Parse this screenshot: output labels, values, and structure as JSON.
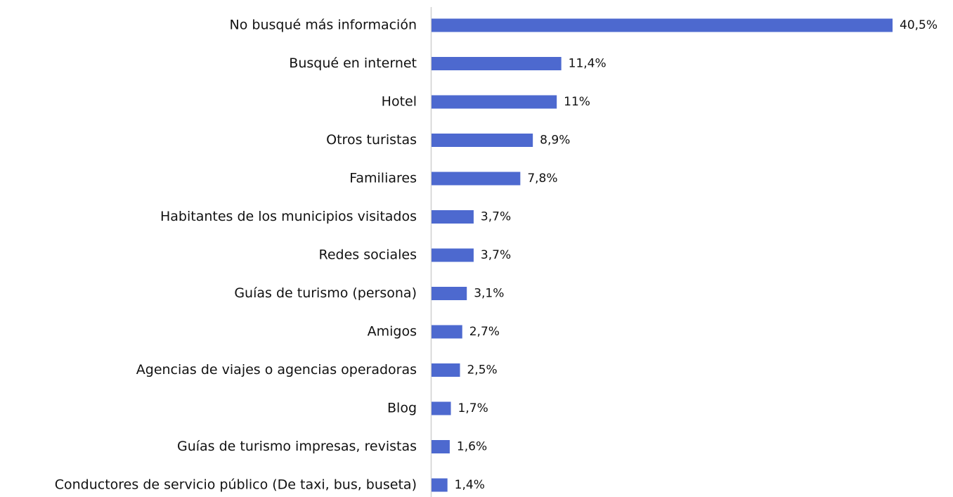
{
  "chart_data": {
    "type": "barh",
    "categories": [
      "No busqué más información",
      "Busqué en internet",
      "Hotel",
      "Otros turistas",
      "Familiares",
      "Habitantes de los municipios visitados",
      "Redes sociales",
      "Guías de turismo (persona)",
      "Amigos",
      "Agencias de viajes o agencias operadoras",
      "Blog",
      "Guías de turismo impresas, revistas",
      "Conductores de servicio público (De taxi, bus, buseta)"
    ],
    "values": [
      40.5,
      11.4,
      11,
      8.9,
      7.8,
      3.7,
      3.7,
      3.1,
      2.7,
      2.5,
      1.7,
      1.6,
      1.4
    ],
    "value_labels": [
      "40,5%",
      "11,4%",
      "11%",
      "8,9%",
      "7,8%",
      "3,7%",
      "3,7%",
      "3,1%",
      "2,7%",
      "2,5%",
      "1,7%",
      "1,6%",
      "1,4%"
    ],
    "color": "#4d69cf"
  }
}
